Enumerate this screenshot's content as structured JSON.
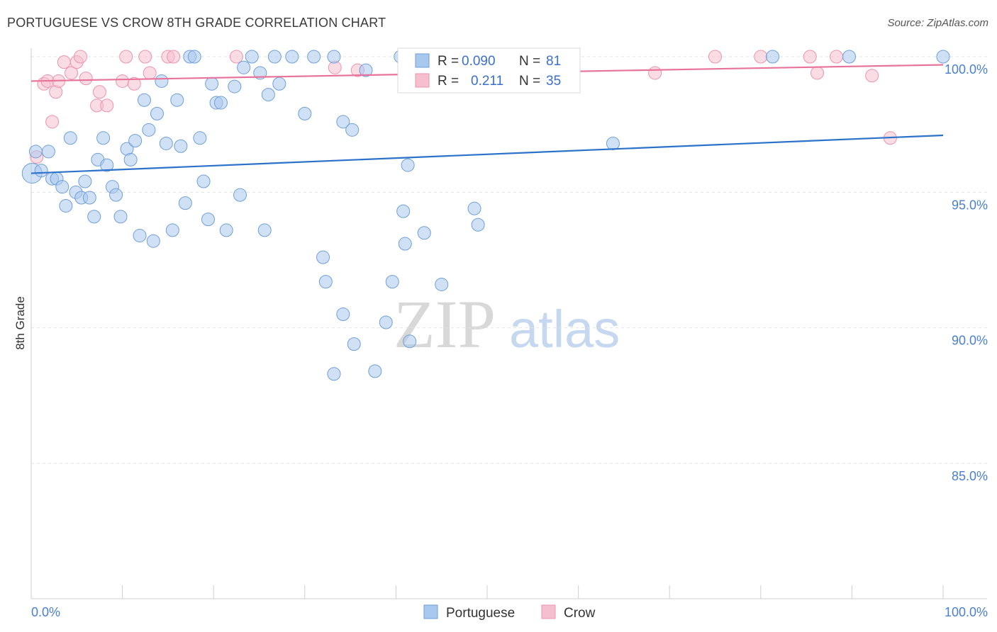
{
  "header": {
    "title": "PORTUGUESE VS CROW 8TH GRADE CORRELATION CHART",
    "source": "Source: ZipAtlas.com"
  },
  "watermark": {
    "zip": "ZIP",
    "atlas": "atlas"
  },
  "legend_top": [
    {
      "r_label": "R =",
      "r_value": "0.090",
      "n_label": "N =",
      "n_value": "81"
    },
    {
      "r_label": "R =",
      "r_value": "0.211",
      "n_label": "N =",
      "n_value": "35"
    }
  ],
  "legend_bottom": [
    {
      "label": "Portuguese"
    },
    {
      "label": "Crow"
    }
  ],
  "colors": {
    "blue_fill": "#a9c8ee",
    "blue_stroke": "#6f9fd8",
    "blue_line": "#2b72c9",
    "pink_fill": "#f6bfd0",
    "pink_stroke": "#ec93b0",
    "pink_line": "#e8739a",
    "grid": "#e2e2e2",
    "axis": "#cfcfcf",
    "tick_text": "#4a7fd0"
  },
  "chart_data": {
    "type": "scatter",
    "title": "PORTUGUESE VS CROW 8TH GRADE CORRELATION CHART",
    "xlabel": "",
    "ylabel": "8th Grade",
    "xlim": [
      0,
      100
    ],
    "ylim": [
      80.5,
      100.6
    ],
    "x_tick_labels": [
      {
        "value": 0,
        "label": "0.0%"
      },
      {
        "value": 100,
        "label": "100.0%"
      }
    ],
    "y_tick_labels": [
      {
        "value": 100,
        "label": "100.0%"
      },
      {
        "value": 95,
        "label": "95.0%"
      },
      {
        "value": 90,
        "label": "90.0%"
      },
      {
        "value": 85,
        "label": "85.0%"
      }
    ],
    "series": [
      {
        "name": "Portuguese",
        "R": 0.09,
        "N": 81,
        "trend": {
          "x": [
            0,
            100
          ],
          "y": [
            95.7,
            97.1
          ]
        },
        "points": [
          [
            0.1,
            95.7
          ],
          [
            0.5,
            96.5
          ],
          [
            1.1,
            95.8
          ],
          [
            1.9,
            96.5
          ],
          [
            2.3,
            95.5
          ],
          [
            2.8,
            95.5
          ],
          [
            3.4,
            95.2
          ],
          [
            3.8,
            94.5
          ],
          [
            4.3,
            97.0
          ],
          [
            4.9,
            95.0
          ],
          [
            5.5,
            94.8
          ],
          [
            5.9,
            95.4
          ],
          [
            6.4,
            94.8
          ],
          [
            6.9,
            94.1
          ],
          [
            7.3,
            96.2
          ],
          [
            7.9,
            97.0
          ],
          [
            8.3,
            96.0
          ],
          [
            8.9,
            95.2
          ],
          [
            9.3,
            94.9
          ],
          [
            9.8,
            94.1
          ],
          [
            10.5,
            96.6
          ],
          [
            10.9,
            96.2
          ],
          [
            11.4,
            96.9
          ],
          [
            11.9,
            93.4
          ],
          [
            12.4,
            98.4
          ],
          [
            12.9,
            97.3
          ],
          [
            13.4,
            93.2
          ],
          [
            13.8,
            97.9
          ],
          [
            14.3,
            99.1
          ],
          [
            14.8,
            96.8
          ],
          [
            15.5,
            93.6
          ],
          [
            16.0,
            98.4
          ],
          [
            16.4,
            96.7
          ],
          [
            16.9,
            94.6
          ],
          [
            17.4,
            100.0
          ],
          [
            17.9,
            100.0
          ],
          [
            18.5,
            97.0
          ],
          [
            18.9,
            95.4
          ],
          [
            19.4,
            94.0
          ],
          [
            19.8,
            99.0
          ],
          [
            20.3,
            98.3
          ],
          [
            20.8,
            98.3
          ],
          [
            21.4,
            93.6
          ],
          [
            22.3,
            98.9
          ],
          [
            22.9,
            94.9
          ],
          [
            23.3,
            99.6
          ],
          [
            24.2,
            100.0
          ],
          [
            25.1,
            99.4
          ],
          [
            25.6,
            93.6
          ],
          [
            26.0,
            98.6
          ],
          [
            26.7,
            100.0
          ],
          [
            27.2,
            99.0
          ],
          [
            28.6,
            100.0
          ],
          [
            30.0,
            97.9
          ],
          [
            31.0,
            100.0
          ],
          [
            32.0,
            92.6
          ],
          [
            32.3,
            91.7
          ],
          [
            33.2,
            100.0
          ],
          [
            34.2,
            97.6
          ],
          [
            35.2,
            97.3
          ],
          [
            33.2,
            88.3
          ],
          [
            34.2,
            90.5
          ],
          [
            35.4,
            89.4
          ],
          [
            36.7,
            99.5
          ],
          [
            37.7,
            88.4
          ],
          [
            38.9,
            90.2
          ],
          [
            39.6,
            91.7
          ],
          [
            40.5,
            100.0
          ],
          [
            40.8,
            94.3
          ],
          [
            41.0,
            93.1
          ],
          [
            41.3,
            96.0
          ],
          [
            41.5,
            89.5
          ],
          [
            43.1,
            93.5
          ],
          [
            45.0,
            91.6
          ],
          [
            48.6,
            94.4
          ],
          [
            49.0,
            93.8
          ],
          [
            58.0,
            100.0
          ],
          [
            63.8,
            96.8
          ],
          [
            81.3,
            100.0
          ],
          [
            89.7,
            100.0
          ],
          [
            100.0,
            100.0
          ]
        ]
      },
      {
        "name": "Crow",
        "R": 0.211,
        "N": 35,
        "trend": {
          "x": [
            0,
            100
          ],
          "y": [
            99.1,
            99.7
          ]
        },
        "points": [
          [
            0.6,
            96.3
          ],
          [
            1.4,
            99.0
          ],
          [
            1.8,
            99.1
          ],
          [
            2.3,
            97.6
          ],
          [
            2.7,
            98.7
          ],
          [
            3.0,
            99.1
          ],
          [
            3.6,
            99.8
          ],
          [
            4.4,
            99.4
          ],
          [
            5.0,
            99.8
          ],
          [
            5.4,
            100.0
          ],
          [
            6.0,
            99.2
          ],
          [
            7.2,
            98.2
          ],
          [
            7.5,
            98.7
          ],
          [
            8.3,
            98.2
          ],
          [
            10.0,
            99.1
          ],
          [
            10.4,
            100.0
          ],
          [
            11.3,
            99.0
          ],
          [
            12.5,
            100.0
          ],
          [
            13.0,
            99.4
          ],
          [
            15.0,
            100.0
          ],
          [
            15.6,
            100.0
          ],
          [
            22.5,
            100.0
          ],
          [
            33.3,
            99.6
          ],
          [
            35.8,
            99.5
          ],
          [
            41.3,
            100.0
          ],
          [
            46.6,
            100.0
          ],
          [
            53.2,
            100.0
          ],
          [
            68.4,
            99.4
          ],
          [
            75.0,
            100.0
          ],
          [
            80.0,
            100.0
          ],
          [
            85.4,
            100.0
          ],
          [
            86.2,
            99.4
          ],
          [
            88.3,
            100.0
          ],
          [
            92.2,
            99.3
          ],
          [
            94.2,
            97.0
          ]
        ]
      }
    ]
  }
}
